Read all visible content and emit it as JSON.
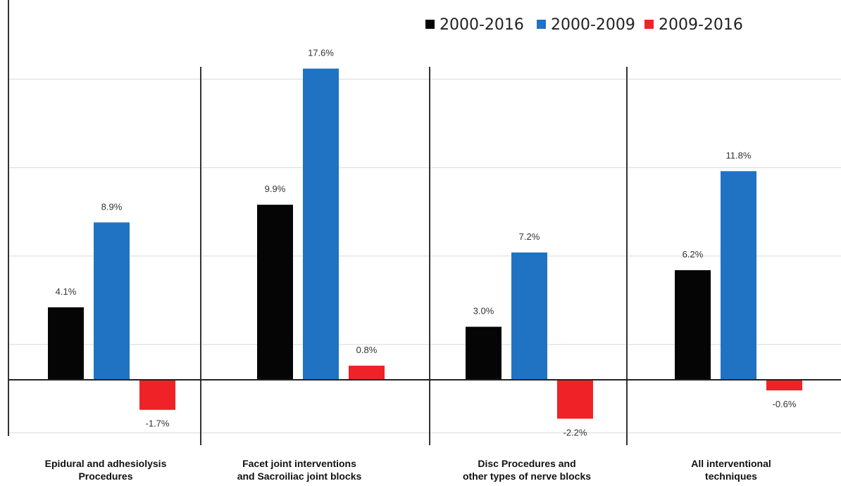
{
  "chart_data": {
    "type": "bar",
    "title": "",
    "xlabel": "",
    "ylabel": "",
    "ylim": [
      -3,
      18
    ],
    "grid": true,
    "legend_position": "top-right",
    "categories": [
      [
        "Epidural and adhesiolysis",
        "Procedures"
      ],
      [
        "Facet joint interventions",
        "and Sacroiliac joint blocks"
      ],
      [
        "Disc Procedures and",
        "other types of nerve blocks"
      ],
      [
        "All interventional",
        "techniques"
      ]
    ],
    "series": [
      {
        "name": "2000-2016",
        "color": "#050505",
        "values": [
          4.1,
          9.9,
          3.0,
          6.2
        ],
        "labels": [
          "4.1%",
          "9.9%",
          "3.0%",
          "6.2%"
        ]
      },
      {
        "name": "2000-2009",
        "color": "#1f73c2",
        "values": [
          8.9,
          17.6,
          7.2,
          11.8
        ],
        "labels": [
          "8.9%",
          "17.6%",
          "7.2%",
          "11.8%"
        ]
      },
      {
        "name": "2009-2016",
        "color": "#ee2227",
        "values": [
          -1.7,
          0.8,
          -2.2,
          -0.6
        ],
        "labels": [
          "-1.7%",
          "0.8%",
          "-2.2%",
          "-0.6%"
        ]
      }
    ]
  }
}
